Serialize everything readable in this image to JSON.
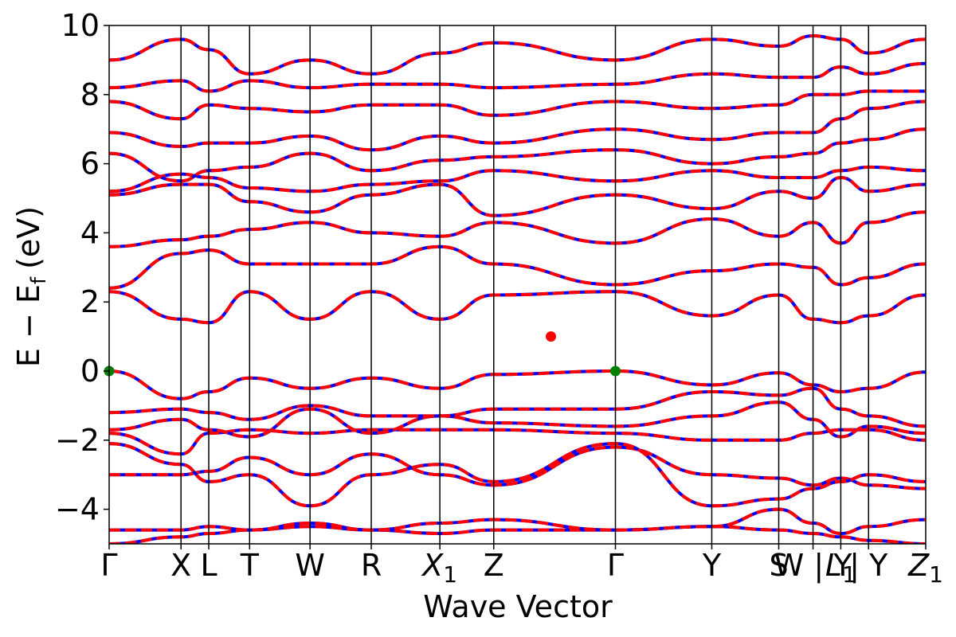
{
  "chart_data": {
    "type": "line",
    "title": "",
    "xlabel": "Wave Vector",
    "ylabel": {
      "main": "E − E",
      "sub": "f",
      "unit": "(eV)"
    },
    "ylim": [
      -5,
      10
    ],
    "yticks": [
      {
        "value": -4,
        "label": "−4"
      },
      {
        "value": -2,
        "label": "−2"
      },
      {
        "value": 0,
        "label": "0"
      },
      {
        "value": 2,
        "label": "2"
      },
      {
        "value": 4,
        "label": "4"
      },
      {
        "value": 6,
        "label": "6"
      },
      {
        "value": 8,
        "label": "8"
      },
      {
        "value": 10,
        "label": "10"
      }
    ],
    "kpath": [
      {
        "x": 0.0,
        "label": "Γ"
      },
      {
        "x": 0.088,
        "label": "X"
      },
      {
        "x": 0.122,
        "label": "L"
      },
      {
        "x": 0.172,
        "label": "T"
      },
      {
        "x": 0.246,
        "label": "W"
      },
      {
        "x": 0.321,
        "label": "R"
      },
      {
        "x": 0.405,
        "label": "X",
        "sub": "1"
      },
      {
        "x": 0.471,
        "label": "Z"
      },
      {
        "x": 0.62,
        "label": "Γ"
      },
      {
        "x": 0.738,
        "label": "Y"
      },
      {
        "x": 0.82,
        "label": "S"
      },
      {
        "x": 0.862,
        "label": "W | Y"
      },
      {
        "x": 0.896,
        "label": "L",
        "sub": "1"
      },
      {
        "x": 0.93,
        "label": "| Y"
      },
      {
        "x": 1.0,
        "label": "Z",
        "sub": "1"
      }
    ],
    "xlim": [
      0,
      1
    ],
    "series_colors": {
      "reference": "#ff0000",
      "overlay": "#0000ff"
    },
    "points": [
      {
        "name": "vbm",
        "x": 0.0,
        "y": 0.0,
        "color": "#008000"
      },
      {
        "name": "vbm",
        "x": 0.62,
        "y": 0.0,
        "color": "#008000"
      },
      {
        "name": "cbm",
        "x": 0.541,
        "y": 1.0,
        "color": "#ff0000"
      }
    ],
    "bands": [
      {
        "y": [
          -5.0,
          -4.8,
          -4.7,
          -4.6,
          -4.5,
          -4.6,
          -4.7,
          -4.6,
          -4.6,
          -4.5,
          -4.6,
          -4.7,
          -4.8,
          -4.9,
          -5.0
        ]
      },
      {
        "y": [
          -4.6,
          -4.6,
          -4.5,
          -4.6,
          -4.4,
          -4.6,
          -4.4,
          -4.3,
          -4.6,
          -4.5,
          -4.0,
          -4.4,
          -4.7,
          -4.5,
          -4.3
        ]
      },
      {
        "y": [
          -3.0,
          -3.0,
          -2.9,
          -2.5,
          -3.0,
          -2.4,
          -3.0,
          -3.3,
          -2.2,
          -3.0,
          -3.1,
          -3.3,
          -3.1,
          -3.3,
          -3.4
        ]
      },
      {
        "y": [
          -2.1,
          -2.7,
          -3.2,
          -3.0,
          -3.9,
          -3.0,
          -2.7,
          -3.2,
          -2.1,
          -3.9,
          -3.7,
          -3.4,
          -3.2,
          -3.0,
          -3.2
        ]
      },
      {
        "y": [
          -1.8,
          -2.4,
          -1.8,
          -1.7,
          -1.8,
          -1.7,
          -1.7,
          -1.7,
          -1.8,
          -2.0,
          -2.0,
          -1.8,
          -1.7,
          -1.7,
          -2.0
        ]
      },
      {
        "y": [
          -1.7,
          -1.4,
          -1.7,
          -1.9,
          -1.1,
          -1.8,
          -1.3,
          -1.5,
          -1.6,
          -1.3,
          -0.9,
          -1.4,
          -1.9,
          -1.6,
          -1.8
        ]
      },
      {
        "y": [
          -1.2,
          -1.1,
          -1.2,
          -1.4,
          -1.0,
          -1.3,
          -1.3,
          -1.1,
          -1.1,
          -0.6,
          -0.7,
          -0.5,
          -1.1,
          -1.3,
          -1.6
        ]
      },
      {
        "y": [
          0.0,
          -0.8,
          -0.6,
          -0.2,
          -0.5,
          -0.2,
          -0.5,
          -0.1,
          0.0,
          -0.4,
          -0.05,
          -0.4,
          -0.6,
          -0.5,
          -0.03
        ]
      },
      {
        "y": [
          2.3,
          1.5,
          1.4,
          2.3,
          1.5,
          2.3,
          1.5,
          2.2,
          2.3,
          1.6,
          2.2,
          1.5,
          1.4,
          1.6,
          2.2
        ]
      },
      {
        "y": [
          2.4,
          3.4,
          3.5,
          3.1,
          3.1,
          3.1,
          3.6,
          3.1,
          2.5,
          2.9,
          3.1,
          3.0,
          2.5,
          2.7,
          3.1
        ]
      },
      {
        "y": [
          3.6,
          3.8,
          3.9,
          4.1,
          4.3,
          4.0,
          3.9,
          4.3,
          3.7,
          4.4,
          3.9,
          4.3,
          3.7,
          4.3,
          4.6
        ]
      },
      {
        "y": [
          5.1,
          5.4,
          5.4,
          4.9,
          4.6,
          5.1,
          5.4,
          4.5,
          5.1,
          4.7,
          5.2,
          5.0,
          5.6,
          5.2,
          5.4
        ]
      },
      {
        "y": [
          5.2,
          5.7,
          5.6,
          5.3,
          5.2,
          5.4,
          5.5,
          5.8,
          5.5,
          5.8,
          5.6,
          5.6,
          5.8,
          5.9,
          5.8
        ]
      },
      {
        "y": [
          6.3,
          5.5,
          5.8,
          5.9,
          6.3,
          5.8,
          6.1,
          6.2,
          6.4,
          6.0,
          6.2,
          6.3,
          6.6,
          6.7,
          7.0
        ]
      },
      {
        "y": [
          6.9,
          6.5,
          6.6,
          6.6,
          6.8,
          6.4,
          6.8,
          6.6,
          7.0,
          6.7,
          6.9,
          6.9,
          7.3,
          7.6,
          7.8
        ]
      },
      {
        "y": [
          7.8,
          7.3,
          7.7,
          7.6,
          7.5,
          7.7,
          7.7,
          7.4,
          7.8,
          7.6,
          7.7,
          8.0,
          8.0,
          8.1,
          8.1
        ]
      },
      {
        "y": [
          8.2,
          8.4,
          8.1,
          8.4,
          8.2,
          8.3,
          8.3,
          8.2,
          8.3,
          8.6,
          8.5,
          8.5,
          8.8,
          8.6,
          8.9
        ]
      },
      {
        "y": [
          9.0,
          9.6,
          9.3,
          8.6,
          9.0,
          8.6,
          9.2,
          9.5,
          9.0,
          9.6,
          9.4,
          9.7,
          9.6,
          9.2,
          9.6
        ]
      }
    ]
  }
}
